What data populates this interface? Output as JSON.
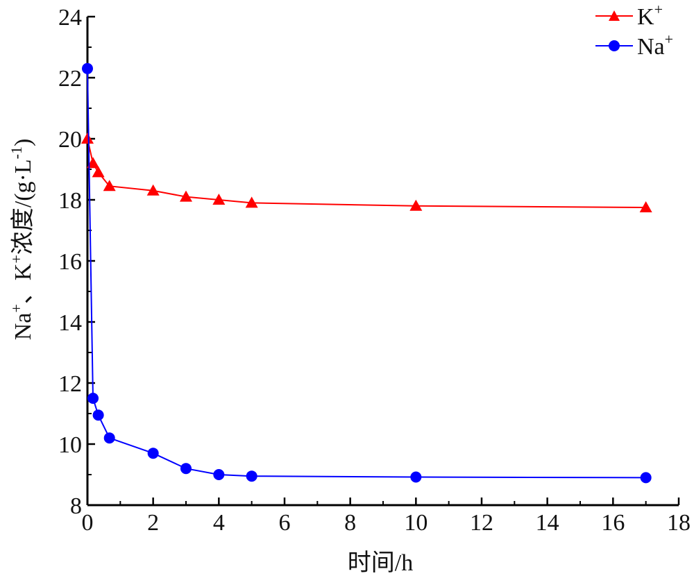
{
  "chart_data": {
    "type": "line",
    "xlabel": "时间/h",
    "ylabel_parts": {
      "a": "Na",
      "b": "、K",
      "c": "浓度/(g·L",
      "d": ")"
    },
    "ylabel_superscripts": {
      "plus": "+",
      "minus_one": "-1"
    },
    "xlim": [
      0,
      18
    ],
    "ylim": [
      8,
      24
    ],
    "xticks": [
      0,
      2,
      4,
      6,
      8,
      10,
      12,
      14,
      16,
      18
    ],
    "yticks": [
      8,
      10,
      12,
      14,
      16,
      18,
      20,
      22,
      24
    ],
    "grid": false,
    "legend": "top-right",
    "series": [
      {
        "name": "K",
        "name_sup": "+",
        "color": "#ff0000",
        "marker": "triangle",
        "x": [
          0,
          0.17,
          0.33,
          0.67,
          2,
          3,
          4,
          5,
          10,
          17
        ],
        "y": [
          20.0,
          19.2,
          18.9,
          18.45,
          18.3,
          18.1,
          18.0,
          17.9,
          17.8,
          17.75
        ]
      },
      {
        "name": "Na",
        "name_sup": "+",
        "color": "#0000ff",
        "marker": "circle",
        "x": [
          0,
          0.17,
          0.33,
          0.67,
          2,
          3,
          4,
          5,
          10,
          17
        ],
        "y": [
          22.3,
          11.5,
          10.95,
          10.2,
          9.7,
          9.2,
          9.0,
          8.95,
          8.92,
          8.9
        ]
      }
    ]
  }
}
